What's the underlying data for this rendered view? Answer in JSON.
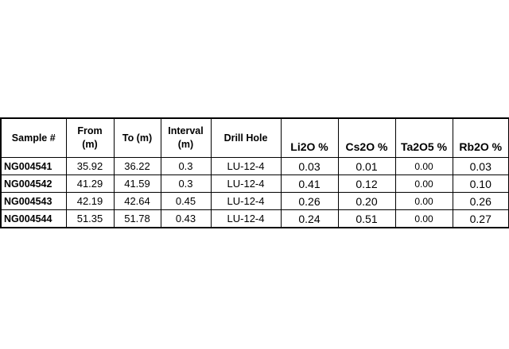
{
  "table": {
    "headers": {
      "sample": "Sample #",
      "from": [
        "From",
        "(m)"
      ],
      "to": "To (m)",
      "interval": [
        "Interval",
        "(m)"
      ],
      "drill_hole": "Drill Hole",
      "li2o": "Li2O %",
      "cs2o": "Cs2O %",
      "ta2o5": "Ta2O5 %",
      "rb2o": "Rb2O %"
    },
    "rows": [
      {
        "sample": "NG004541",
        "from": "35.92",
        "to": "36.22",
        "interval": "0.3",
        "drill_hole": "LU-12-4",
        "li2o": "0.03",
        "cs2o": "0.01",
        "ta2o5": "0.00",
        "rb2o": "0.03"
      },
      {
        "sample": "NG004542",
        "from": "41.29",
        "to": "41.59",
        "interval": "0.3",
        "drill_hole": "LU-12-4",
        "li2o": "0.41",
        "cs2o": "0.12",
        "ta2o5": "0.00",
        "rb2o": "0.10"
      },
      {
        "sample": "NG004543",
        "from": "42.19",
        "to": "42.64",
        "interval": "0.45",
        "drill_hole": "LU-12-4",
        "li2o": "0.26",
        "cs2o": "0.20",
        "ta2o5": "0.00",
        "rb2o": "0.26"
      },
      {
        "sample": "NG004544",
        "from": "51.35",
        "to": "51.78",
        "interval": "0.43",
        "drill_hole": "LU-12-4",
        "li2o": "0.24",
        "cs2o": "0.51",
        "ta2o5": "0.00",
        "rb2o": "0.27"
      }
    ]
  }
}
